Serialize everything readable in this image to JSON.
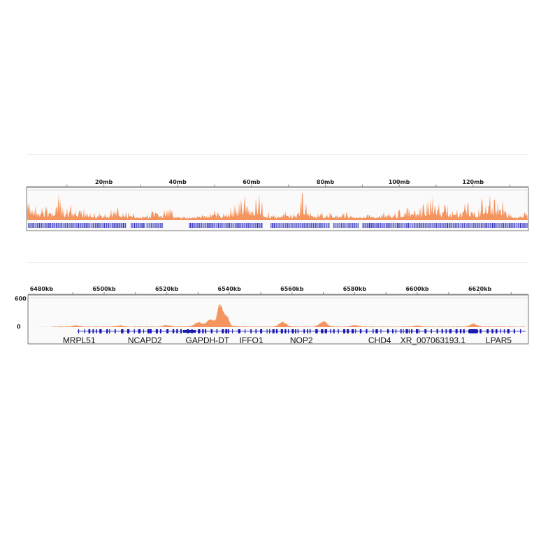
{
  "colors": {
    "coverage": "#f4945f",
    "genes": "#1a1ab4",
    "frame": "#777777"
  },
  "chart_data": [
    {
      "type": "area",
      "xunit": "mb",
      "xlim": [
        0,
        135
      ],
      "tick_labels": [
        "20mb",
        "40mb",
        "60mb",
        "80mb",
        "100mb",
        "120mb"
      ],
      "tick_values": [
        20,
        40,
        60,
        80,
        100,
        120
      ],
      "coverage_relative": [
        0.55,
        0.7,
        0.35,
        0.5,
        0.4,
        0.95,
        0.3,
        0.55,
        0.25,
        0.4,
        0.45,
        0.2,
        0.3,
        0.12,
        0.65,
        0.2,
        0.3,
        0.25,
        0.1,
        0.15,
        0.3,
        0.2,
        0.35,
        0.4,
        0.08,
        0.06,
        0.05,
        0.1,
        0.3,
        0.2,
        0.35,
        0.15,
        0.4,
        0.5,
        0.65,
        0.9,
        0.5,
        0.95,
        0.4,
        0.25,
        0.1,
        0.35,
        0.2,
        0.25,
        0.95,
        0.3,
        0.2,
        0.25,
        0.35,
        0.15,
        0.2,
        0.3,
        0.1,
        0.08,
        0.2,
        0.15,
        0.1,
        0.3,
        0.35,
        0.25,
        0.45,
        0.4,
        0.3,
        0.5,
        0.65,
        0.9,
        0.45,
        0.55,
        0.3,
        0.4,
        0.6,
        0.5,
        0.35,
        0.95,
        0.85,
        0.6,
        0.7,
        0.2,
        0.1,
        0.15,
        0.95
      ],
      "gene_gaps_mb": [
        [
          26,
          27
        ],
        [
          31,
          31.5
        ],
        [
          36,
          43
        ],
        [
          63,
          65
        ],
        [
          81,
          82
        ],
        [
          89,
          90
        ]
      ]
    },
    {
      "type": "area",
      "xunit": "kb",
      "xlim": [
        6476,
        6634
      ],
      "ylim": [
        0,
        600
      ],
      "ytick_labels": [
        "600",
        "0"
      ],
      "tick_labels": [
        "6480kb",
        "6500kb",
        "6520kb",
        "6540kb",
        "6560kb",
        "6580kb",
        "6600kb",
        "6620kb"
      ],
      "tick_values": [
        6480,
        6500,
        6520,
        6540,
        6560,
        6580,
        6600,
        6620
      ],
      "peaks": [
        {
          "kb": 6491,
          "value": 30
        },
        {
          "kb": 6505,
          "value": 25
        },
        {
          "kb": 6520,
          "value": 35
        },
        {
          "kb": 6530,
          "value": 90
        },
        {
          "kb": 6534,
          "value": 140
        },
        {
          "kb": 6537,
          "value": 520
        },
        {
          "kb": 6539,
          "value": 260
        },
        {
          "kb": 6557,
          "value": 110
        },
        {
          "kb": 6570,
          "value": 130
        },
        {
          "kb": 6580,
          "value": 35
        },
        {
          "kb": 6600,
          "value": 25
        },
        {
          "kb": 6618,
          "value": 70
        }
      ],
      "genes": [
        {
          "name": "MRPL51",
          "kb": 6492
        },
        {
          "name": "NCAPD2",
          "kb": 6513
        },
        {
          "name": "GAPDH-DT",
          "kb": 6533
        },
        {
          "name": "IFFO1",
          "kb": 6547
        },
        {
          "name": "NOP2",
          "kb": 6563
        },
        {
          "name": "CHD4",
          "kb": 6588
        },
        {
          "name": "XR_007063193.1",
          "kb": 6605
        },
        {
          "name": "LPAR5",
          "kb": 6626
        }
      ]
    }
  ]
}
